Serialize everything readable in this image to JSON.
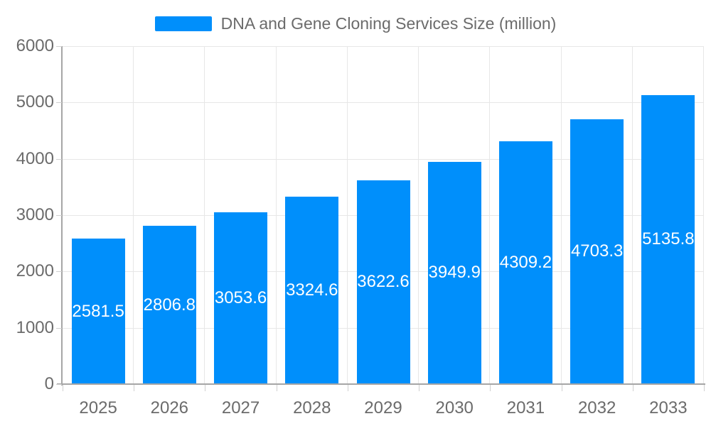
{
  "chart_data": {
    "type": "bar",
    "title": "DNA and Gene Cloning Services Size (million)",
    "categories": [
      "2025",
      "2026",
      "2027",
      "2028",
      "2029",
      "2030",
      "2031",
      "2032",
      "2033"
    ],
    "values": [
      2581.5,
      2806.8,
      3053.6,
      3324.6,
      3622.6,
      3949.9,
      4309.2,
      4703.3,
      5135.8
    ],
    "data_labels": [
      "2581.5",
      "2806.8",
      "3053.6",
      "3324.6",
      "3622.6",
      "3949.9",
      "4309.2",
      "4703.3",
      "5135.8"
    ],
    "xlabel": "",
    "ylabel": "",
    "ylim": [
      0,
      6000
    ],
    "yticks": [
      0,
      1000,
      2000,
      3000,
      4000,
      5000,
      6000
    ],
    "grid": "on",
    "legend_position": "top-center",
    "colors": {
      "bar": "#008FFB",
      "data_label": "#ffffff",
      "axis_text": "#6b6b6b",
      "gridline": "#e7e7e7",
      "axis_line": "#a6a6a6",
      "background": "#ffffff"
    }
  }
}
